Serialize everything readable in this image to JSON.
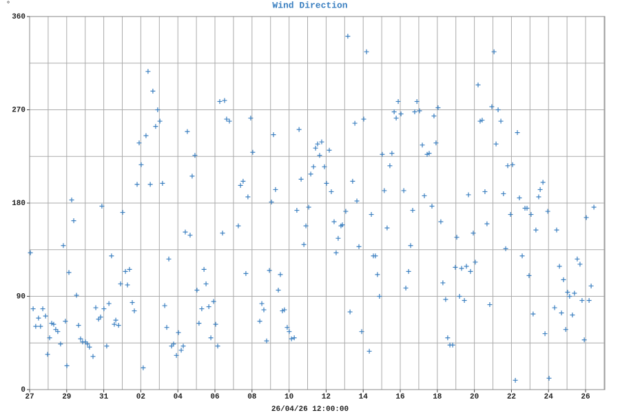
{
  "chart_data": {
    "type": "scatter",
    "title": "Wind Direction",
    "y_label": "°",
    "x_label": "26/04/26 12:00:00",
    "color": "#3a7fc0",
    "grid": true,
    "xgrid_step": 1,
    "ygrid_step": 45,
    "xlim": [
      0,
      31.04
    ],
    "ylim": [
      0,
      360
    ],
    "yticks": [
      0,
      90,
      180,
      270,
      360
    ],
    "xticks": [
      {
        "value": 0,
        "label": "27"
      },
      {
        "value": 2,
        "label": "29"
      },
      {
        "value": 4,
        "label": "31"
      },
      {
        "value": 6,
        "label": "02"
      },
      {
        "value": 8,
        "label": "04"
      },
      {
        "value": 10,
        "label": "06"
      },
      {
        "value": 12,
        "label": "08"
      },
      {
        "value": 14,
        "label": "10"
      },
      {
        "value": 16,
        "label": "12"
      },
      {
        "value": 18,
        "label": "14"
      },
      {
        "value": 20,
        "label": "16"
      },
      {
        "value": 22,
        "label": "18"
      },
      {
        "value": 24,
        "label": "20"
      },
      {
        "value": 26,
        "label": "22"
      },
      {
        "value": 28,
        "label": "24"
      },
      {
        "value": 30,
        "label": "26"
      }
    ],
    "x": [
      0.04,
      0.19,
      0.33,
      0.48,
      0.59,
      0.71,
      0.86,
      0.97,
      1.08,
      1.19,
      1.3,
      1.41,
      1.52,
      1.67,
      1.82,
      1.93,
      2.01,
      2.12,
      2.27,
      2.38,
      2.53,
      2.64,
      2.75,
      2.86,
      3.01,
      3.12,
      3.23,
      3.42,
      3.57,
      3.72,
      3.83,
      3.9,
      4.01,
      4.16,
      4.28,
      4.42,
      4.57,
      4.65,
      4.8,
      4.91,
      5.02,
      5.17,
      5.28,
      5.39,
      5.54,
      5.65,
      5.8,
      5.91,
      6.02,
      6.13,
      6.28,
      6.39,
      6.51,
      6.65,
      6.8,
      6.91,
      7.03,
      7.17,
      7.29,
      7.4,
      7.51,
      7.66,
      7.77,
      7.92,
      8.03,
      8.18,
      8.29,
      8.4,
      8.51,
      8.66,
      8.77,
      8.92,
      9.03,
      9.14,
      9.29,
      9.41,
      9.52,
      9.67,
      9.78,
      9.93,
      10.04,
      10.15,
      10.26,
      10.41,
      10.52,
      10.63,
      10.78,
      11.26,
      11.38,
      11.52,
      11.67,
      11.78,
      11.93,
      12.04,
      12.42,
      12.53,
      12.64,
      12.79,
      12.94,
      13.05,
      13.16,
      13.27,
      13.42,
      13.53,
      13.64,
      13.75,
      13.9,
      14.01,
      14.13,
      14.28,
      14.42,
      14.54,
      14.65,
      14.8,
      14.91,
      15.06,
      15.17,
      15.32,
      15.43,
      15.54,
      15.65,
      15.76,
      15.91,
      16.02,
      16.17,
      16.28,
      16.43,
      16.54,
      16.65,
      16.8,
      16.88,
      17.06,
      17.17,
      17.29,
      17.43,
      17.55,
      17.66,
      17.77,
      17.92,
      18.03,
      18.18,
      18.33,
      18.44,
      18.55,
      18.66,
      18.77,
      18.88,
      19.03,
      19.14,
      19.29,
      19.44,
      19.55,
      19.67,
      19.78,
      19.89,
      20.04,
      20.19,
      20.3,
      20.45,
      20.56,
      20.67,
      20.78,
      20.9,
      21.04,
      21.19,
      21.3,
      21.45,
      21.56,
      21.71,
      21.82,
      21.93,
      22.04,
      22.19,
      22.3,
      22.45,
      22.56,
      22.68,
      22.83,
      22.97,
      23.05,
      23.2,
      23.31,
      23.46,
      23.57,
      23.68,
      23.79,
      23.94,
      24.05,
      24.2,
      24.31,
      24.42,
      24.57,
      24.68,
      24.83,
      24.94,
      25.06,
      25.17,
      25.28,
      25.43,
      25.57,
      25.69,
      25.8,
      25.95,
      26.06,
      26.21,
      26.32,
      26.43,
      26.58,
      26.73,
      26.84,
      26.95,
      27.06,
      27.17,
      27.32,
      27.47,
      27.55,
      27.7,
      27.81,
      27.96,
      28.03,
      28.33,
      28.44,
      28.59,
      28.7,
      28.81,
      28.93,
      29.03,
      29.14,
      29.29,
      29.4,
      29.55,
      29.7,
      29.81,
      29.93,
      30.04,
      30.19,
      30.3,
      30.45
    ],
    "values": [
      132,
      78,
      61,
      69,
      61,
      78,
      71,
      34,
      50,
      64,
      63,
      58,
      56,
      44,
      139,
      66,
      23,
      113,
      183,
      163,
      91,
      62,
      49,
      46,
      46,
      44,
      41,
      32,
      79,
      68,
      70,
      177,
      78,
      42,
      83,
      129,
      63,
      67,
      62,
      102,
      171,
      114,
      101,
      116,
      84,
      76,
      198,
      238,
      217,
      21,
      245,
      307,
      198,
      288,
      254,
      270,
      259,
      199,
      81,
      60,
      126,
      42,
      44,
      33,
      55,
      38,
      42,
      152,
      249,
      149,
      206,
      226,
      96,
      64,
      78,
      116,
      102,
      80,
      50,
      85,
      63,
      42,
      278,
      151,
      279,
      261,
      259,
      158,
      197,
      201,
      112,
      186,
      262,
      229,
      66,
      83,
      77,
      47,
      115,
      181,
      246,
      193,
      96,
      111,
      76,
      77,
      60,
      56,
      49,
      50,
      173,
      251,
      203,
      140,
      158,
      176,
      208,
      215,
      233,
      237,
      226,
      239,
      215,
      199,
      231,
      191,
      162,
      132,
      146,
      158,
      159,
      172,
      341,
      75,
      201,
      257,
      182,
      138,
      56,
      261,
      326,
      37,
      169,
      129,
      129,
      111,
      90,
      227,
      192,
      156,
      216,
      228,
      268,
      262,
      278,
      266,
      192,
      98,
      114,
      139,
      173,
      268,
      278,
      269,
      236,
      187,
      227,
      228,
      177,
      264,
      238,
      272,
      162,
      103,
      87,
      50,
      43,
      43,
      118,
      147,
      90,
      117,
      86,
      119,
      188,
      114,
      151,
      123,
      294,
      259,
      260,
      191,
      160,
      82,
      273,
      326,
      237,
      270,
      259,
      189,
      136,
      216,
      169,
      217,
      9,
      248,
      185,
      129,
      175,
      175,
      110,
      169,
      73,
      154,
      186,
      193,
      200,
      54,
      172,
      11,
      79,
      154,
      119,
      74,
      106,
      58,
      94,
      90,
      72,
      93,
      126,
      121,
      86,
      48,
      166,
      86,
      100,
      176
    ]
  }
}
